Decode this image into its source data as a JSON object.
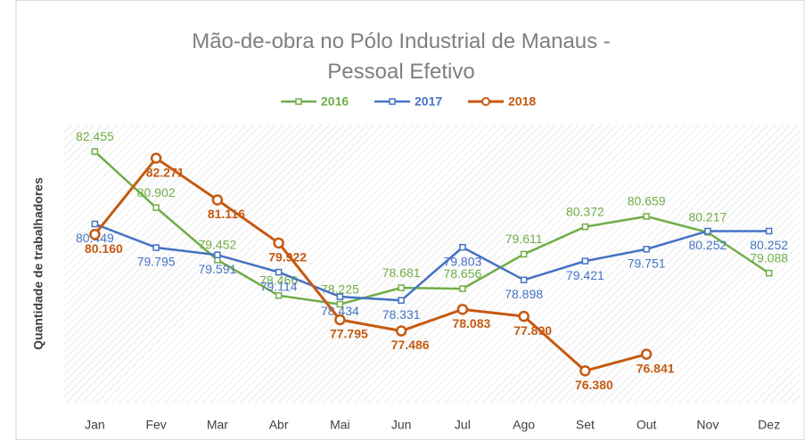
{
  "chart_data": {
    "type": "line",
    "title": "Mão-de-obra no Pólo Industrial de Manaus - Pessoal Efetivo",
    "y_label": "Quantidade de trabalhadores",
    "categories": [
      "Jan",
      "Fev",
      "Mar",
      "Abr",
      "Mai",
      "Jun",
      "Jul",
      "Ago",
      "Set",
      "Out",
      "Nov",
      "Dez"
    ],
    "ylim": [
      75.5,
      83.2
    ],
    "legend": "top",
    "series": [
      {
        "name": "2016",
        "color": "#70ad47",
        "values": [
          82.455,
          80.902,
          79.452,
          78.466,
          78.225,
          78.681,
          78.656,
          79.611,
          80.372,
          80.659,
          80.217,
          79.088
        ],
        "value_labels": [
          "82.455",
          "80.902",
          "79.452",
          "78.466",
          "78.225",
          "78.681",
          "78.656",
          "79.611",
          "80.372",
          "80.659",
          "80.217",
          "79.088"
        ]
      },
      {
        "name": "2017",
        "color": "#4472c4",
        "values": [
          80.449,
          79.795,
          79.591,
          79.114,
          78.434,
          78.331,
          79.803,
          78.898,
          79.421,
          79.751,
          80.252,
          80.252
        ],
        "value_labels": [
          "80.449",
          "79.795",
          "79.591",
          "79.114",
          "78.434",
          "78.331",
          "79.803",
          "78.898",
          "79.421",
          "79.751",
          "80.252",
          "80.252"
        ]
      },
      {
        "name": "2018",
        "color": "#c55a11",
        "values": [
          80.16,
          82.271,
          81.116,
          79.922,
          77.795,
          77.486,
          78.083,
          77.89,
          76.38,
          76.841,
          null,
          null
        ],
        "value_labels": [
          "80.160",
          "82.271",
          "81.116",
          "79.922",
          "77.795",
          "77.486",
          "78.083",
          "77.890",
          "76.380",
          "76.841",
          null,
          null
        ]
      }
    ]
  }
}
